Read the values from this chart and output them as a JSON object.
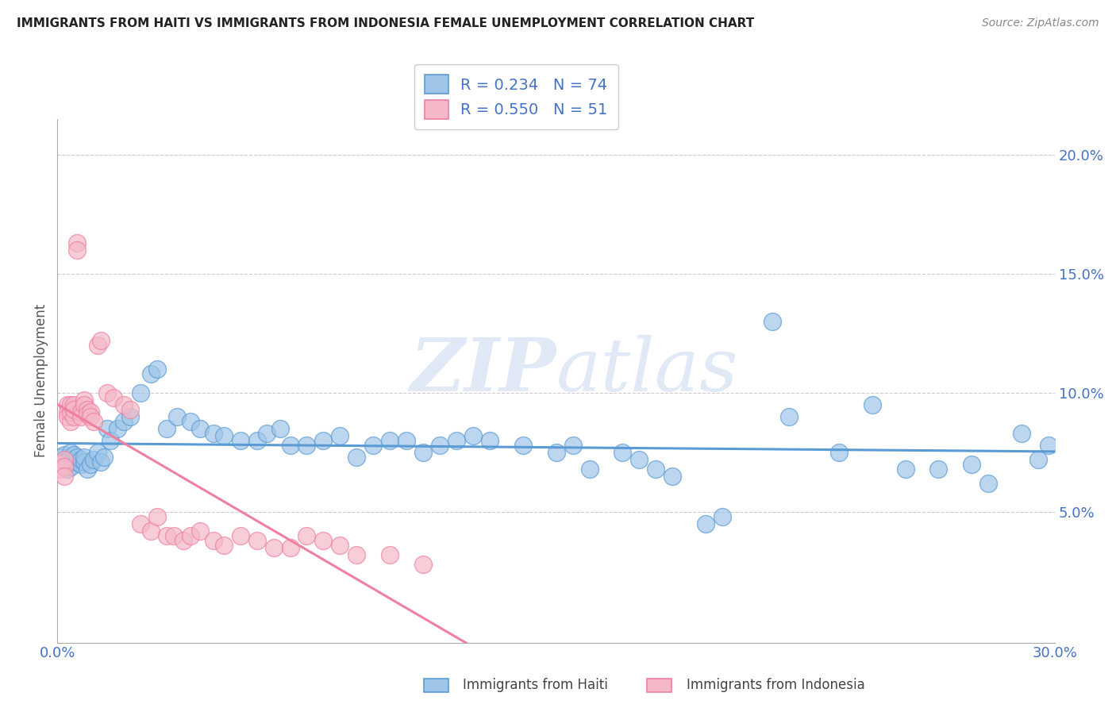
{
  "title": "IMMIGRANTS FROM HAITI VS IMMIGRANTS FROM INDONESIA FEMALE UNEMPLOYMENT CORRELATION CHART",
  "source": "Source: ZipAtlas.com",
  "ylabel": "Female Unemployment",
  "right_yticks": [
    "5.0%",
    "10.0%",
    "15.0%",
    "20.0%"
  ],
  "right_ytick_vals": [
    0.05,
    0.1,
    0.15,
    0.2
  ],
  "xlim": [
    0.0,
    0.3
  ],
  "ylim": [
    -0.005,
    0.215
  ],
  "haiti_color": "#5b9bd5",
  "haiti_color_fill": "#9ec5e8",
  "indonesia_color_line": "#f080a0",
  "indonesia_color_fill": "#f4b8c8",
  "haiti_R": 0.234,
  "haiti_N": 74,
  "indonesia_R": 0.55,
  "indonesia_N": 51,
  "watermark_zip": "ZIP",
  "watermark_atlas": "atlas",
  "haiti_scatter_x": [
    0.001,
    0.001,
    0.002,
    0.002,
    0.003,
    0.003,
    0.004,
    0.004,
    0.005,
    0.005,
    0.006,
    0.006,
    0.007,
    0.007,
    0.008,
    0.008,
    0.009,
    0.01,
    0.011,
    0.012,
    0.013,
    0.014,
    0.015,
    0.016,
    0.018,
    0.02,
    0.022,
    0.025,
    0.028,
    0.03,
    0.033,
    0.036,
    0.04,
    0.043,
    0.047,
    0.05,
    0.055,
    0.06,
    0.063,
    0.067,
    0.07,
    0.075,
    0.08,
    0.085,
    0.09,
    0.095,
    0.1,
    0.105,
    0.11,
    0.115,
    0.12,
    0.125,
    0.13,
    0.14,
    0.15,
    0.155,
    0.16,
    0.17,
    0.175,
    0.18,
    0.185,
    0.195,
    0.2,
    0.215,
    0.22,
    0.235,
    0.245,
    0.255,
    0.265,
    0.275,
    0.28,
    0.29,
    0.295,
    0.298
  ],
  "haiti_scatter_y": [
    0.073,
    0.071,
    0.07,
    0.074,
    0.072,
    0.068,
    0.075,
    0.069,
    0.072,
    0.074,
    0.071,
    0.073,
    0.07,
    0.072,
    0.071,
    0.073,
    0.068,
    0.07,
    0.072,
    0.075,
    0.071,
    0.073,
    0.085,
    0.08,
    0.085,
    0.088,
    0.09,
    0.1,
    0.108,
    0.11,
    0.085,
    0.09,
    0.088,
    0.085,
    0.083,
    0.082,
    0.08,
    0.08,
    0.083,
    0.085,
    0.078,
    0.078,
    0.08,
    0.082,
    0.073,
    0.078,
    0.08,
    0.08,
    0.075,
    0.078,
    0.08,
    0.082,
    0.08,
    0.078,
    0.075,
    0.078,
    0.068,
    0.075,
    0.072,
    0.068,
    0.065,
    0.045,
    0.048,
    0.13,
    0.09,
    0.075,
    0.095,
    0.068,
    0.068,
    0.07,
    0.062,
    0.083,
    0.072,
    0.078
  ],
  "indonesia_scatter_x": [
    0.001,
    0.001,
    0.002,
    0.002,
    0.002,
    0.003,
    0.003,
    0.003,
    0.004,
    0.004,
    0.004,
    0.005,
    0.005,
    0.005,
    0.006,
    0.006,
    0.007,
    0.007,
    0.008,
    0.008,
    0.009,
    0.009,
    0.01,
    0.01,
    0.011,
    0.012,
    0.013,
    0.015,
    0.017,
    0.02,
    0.022,
    0.025,
    0.028,
    0.03,
    0.033,
    0.035,
    0.038,
    0.04,
    0.043,
    0.047,
    0.05,
    0.055,
    0.06,
    0.065,
    0.07,
    0.075,
    0.08,
    0.085,
    0.09,
    0.1,
    0.11
  ],
  "indonesia_scatter_y": [
    0.07,
    0.068,
    0.072,
    0.069,
    0.065,
    0.095,
    0.092,
    0.09,
    0.088,
    0.092,
    0.095,
    0.095,
    0.09,
    0.093,
    0.163,
    0.16,
    0.092,
    0.09,
    0.097,
    0.095,
    0.093,
    0.091,
    0.092,
    0.09,
    0.088,
    0.12,
    0.122,
    0.1,
    0.098,
    0.095,
    0.093,
    0.045,
    0.042,
    0.048,
    0.04,
    0.04,
    0.038,
    0.04,
    0.042,
    0.038,
    0.036,
    0.04,
    0.038,
    0.035,
    0.035,
    0.04,
    0.038,
    0.036,
    0.032,
    0.032,
    0.028
  ]
}
